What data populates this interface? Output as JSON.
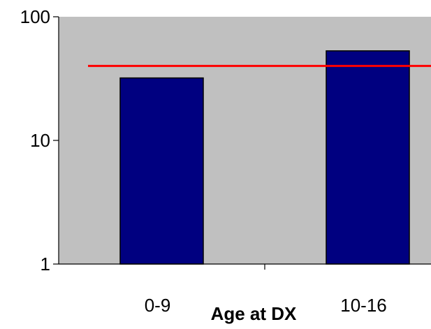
{
  "chart_data": {
    "type": "bar",
    "title": "",
    "xlabel": "Age at DX",
    "ylabel": "",
    "y_scale": "log",
    "ylim": [
      1,
      100
    ],
    "y_ticks": [
      {
        "value": 100,
        "label": "100"
      },
      {
        "value": 10,
        "label": "10"
      },
      {
        "value": 1,
        "label": "1"
      }
    ],
    "categories": [
      "0-9",
      "10-16"
    ],
    "series": [
      {
        "values": [
          32,
          53
        ]
      }
    ],
    "reference_line": {
      "value": 40
    },
    "grid": false,
    "colors": {
      "plot_background": "#c0c0c0",
      "bar_fill": "#000080",
      "bar_stroke": "#000000",
      "reference_line": "#ff0000",
      "axis": "#000000"
    }
  }
}
